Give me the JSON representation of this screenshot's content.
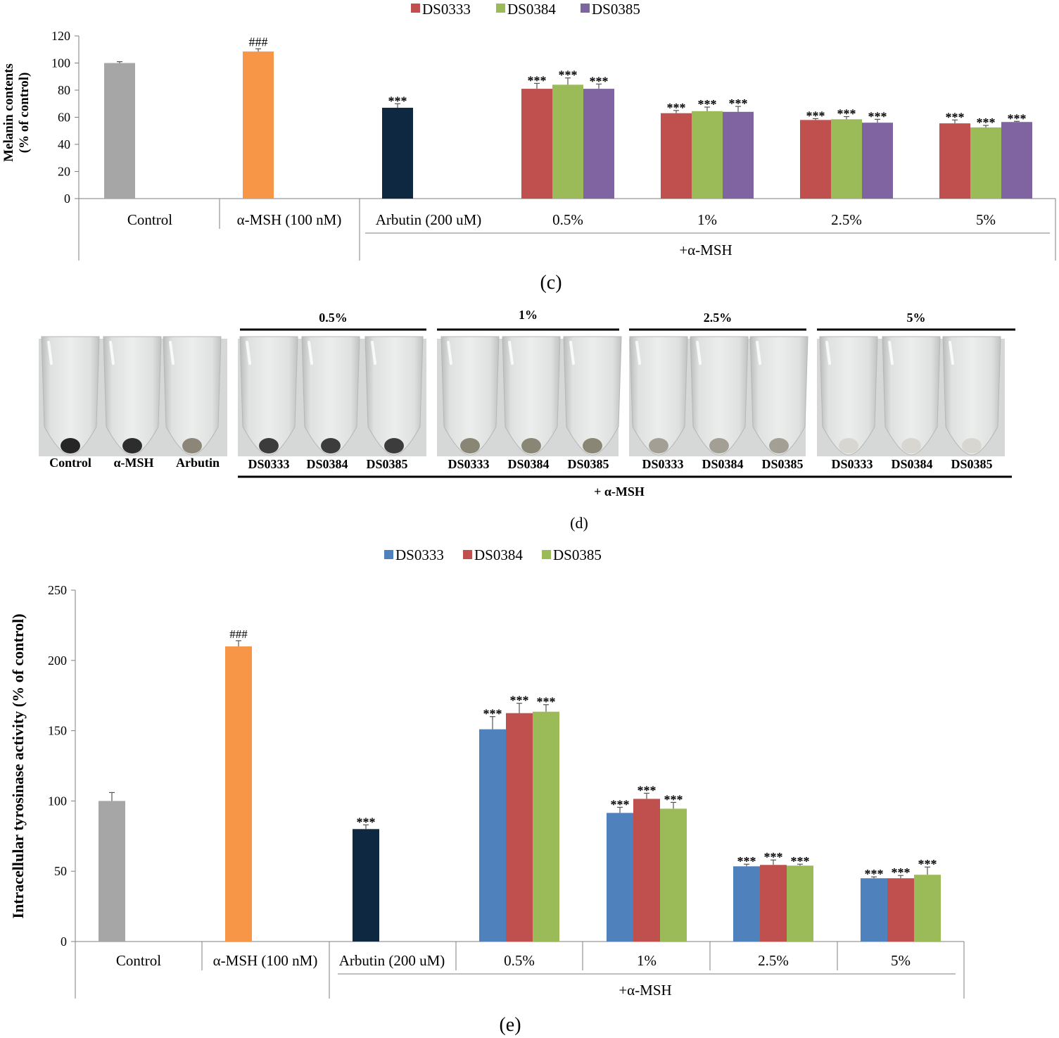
{
  "colors": {
    "gray": "#a6a6a6",
    "orange": "#f79646",
    "navy": "#0f2842",
    "red": "#c0504d",
    "green": "#9bbb59",
    "purple": "#8064a2",
    "blue": "#4f81bd"
  },
  "chart_data": [
    {
      "type": "bar",
      "panel_label": "(c)",
      "ylabel_line1": "Melanin contents",
      "ylabel_line2": "(% of control)",
      "ylim": [
        0,
        120
      ],
      "yticks": [
        0,
        20,
        40,
        60,
        80,
        100,
        120
      ],
      "legend": [
        "DS0333",
        "DS0384",
        "DS0385"
      ],
      "legend_colors": [
        "red",
        "green",
        "purple"
      ],
      "group_label": "+α-MSH",
      "single_bars": [
        {
          "label": "Control",
          "value": 100,
          "err": 1,
          "color": "gray",
          "sig": ""
        },
        {
          "label": "α-MSH (100 nM)",
          "value": 108.5,
          "err": 2,
          "color": "orange",
          "sig": "###"
        },
        {
          "label": "Arbutin (200 uM)",
          "value": 67,
          "err": 3,
          "color": "navy",
          "sig": "***"
        }
      ],
      "categories": [
        "0.5%",
        "1%",
        "2.5%",
        "5%"
      ],
      "series": [
        {
          "name": "DS0333",
          "values": [
            81,
            63,
            58,
            55.5
          ],
          "errors": [
            4,
            2,
            1,
            2.5
          ],
          "sig": [
            "***",
            "***",
            "***",
            "***"
          ]
        },
        {
          "name": "DS0384",
          "values": [
            84,
            64.5,
            58.5,
            52.5
          ],
          "errors": [
            5,
            3,
            2,
            1.5
          ],
          "sig": [
            "***",
            "***",
            "***",
            "***"
          ]
        },
        {
          "name": "DS0385",
          "values": [
            81,
            64,
            56,
            56.5
          ],
          "errors": [
            3.5,
            4,
            2.5,
            0.5
          ],
          "sig": [
            "***",
            "***",
            "***",
            "***"
          ]
        }
      ]
    },
    {
      "type": "bar",
      "panel_label": "(e)",
      "ylabel": "Intracellular tyrosinase activity (% of control)",
      "ylim": [
        0,
        250
      ],
      "yticks": [
        0,
        50,
        100,
        150,
        200,
        250
      ],
      "legend": [
        "DS0333",
        "DS0384",
        "DS0385"
      ],
      "legend_colors": [
        "blue",
        "red",
        "green"
      ],
      "group_label": "+α-MSH",
      "single_bars": [
        {
          "label": "Control",
          "value": 100,
          "err": 6,
          "color": "gray",
          "sig": ""
        },
        {
          "label": "α-MSH (100 nM)",
          "value": 210,
          "err": 4,
          "color": "orange",
          "sig": "###"
        },
        {
          "label": "Arbutin (200 uM)",
          "value": 80,
          "err": 3,
          "color": "navy",
          "sig": "***"
        }
      ],
      "categories": [
        "0.5%",
        "1%",
        "2.5%",
        "5%"
      ],
      "series": [
        {
          "name": "DS0333",
          "values": [
            151,
            91.5,
            53.5,
            45
          ],
          "errors": [
            9,
            4,
            1.5,
            1
          ],
          "sig": [
            "***",
            "***",
            "***",
            "***"
          ]
        },
        {
          "name": "DS0384",
          "values": [
            162.5,
            101.5,
            54.5,
            45
          ],
          "errors": [
            7,
            4,
            3.5,
            2
          ],
          "sig": [
            "***",
            "***",
            "***",
            "***"
          ]
        },
        {
          "name": "DS0385",
          "values": [
            163.5,
            94.5,
            54,
            47.5
          ],
          "errors": [
            5,
            4.5,
            1,
            5.5
          ],
          "sig": [
            "***",
            "***",
            "***",
            "***"
          ]
        }
      ]
    }
  ],
  "tube_panel": {
    "panel_label": "(d)",
    "group_label": "+ α-MSH",
    "controls": [
      "Control",
      "α-MSH",
      "Arbutin"
    ],
    "groups": [
      {
        "concentration": "0.5%",
        "samples": [
          "DS0333",
          "DS0384",
          "DS0385"
        ],
        "pellet": "#3c3c3c"
      },
      {
        "concentration": "1%",
        "samples": [
          "DS0333",
          "DS0384",
          "DS0385"
        ],
        "pellet": "#8a8675"
      },
      {
        "concentration": "2.5%",
        "samples": [
          "DS0333",
          "DS0384",
          "DS0385"
        ],
        "pellet": "#a39f95"
      },
      {
        "concentration": "5%",
        "samples": [
          "DS0333",
          "DS0384",
          "DS0385"
        ],
        "pellet": "#d8d6d0"
      }
    ],
    "control_pellets": [
      "#262626",
      "#2d2d2d",
      "#8b8677"
    ]
  }
}
